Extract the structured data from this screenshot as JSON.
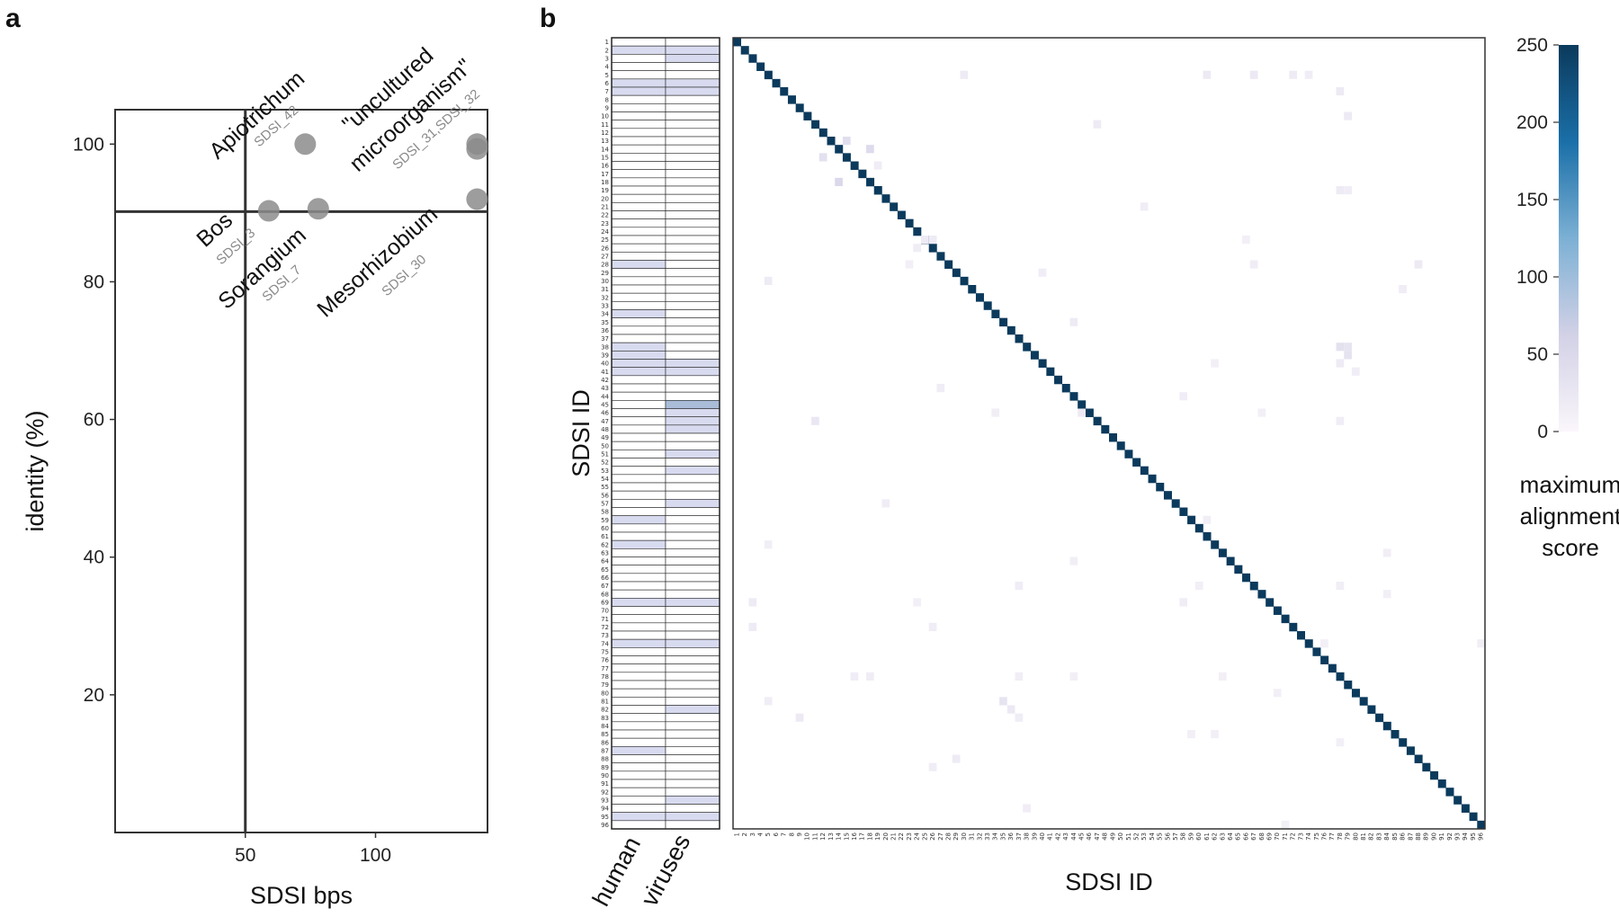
{
  "panel_a": {
    "letter": "a",
    "xlabel": "SDSI bps",
    "ylabel": "identity (%)",
    "xticks": [
      50,
      100
    ],
    "yticks": [
      20,
      40,
      60,
      80,
      100
    ],
    "annotations": [
      {
        "name": "Apiotrichum",
        "id": "SDSI_42"
      },
      {
        "name": "\"uncultured microorganism\"",
        "name_lines": [
          "\"uncultured",
          "microorganism\""
        ],
        "id": "SDSI_31,SDSI_32"
      },
      {
        "name": "Bos",
        "id": "SDSI_3"
      },
      {
        "name": "Sorangium",
        "id": "SDSI_7"
      },
      {
        "name": "Mesorhizobium",
        "id": "SDSI_30"
      }
    ]
  },
  "panel_b": {
    "letter": "b",
    "ylabel": "SDSI ID",
    "xlabel": "SDSI ID",
    "side_columns": [
      "human",
      "viruses"
    ],
    "colorbar": {
      "label_lines": [
        "maximum",
        "alignment",
        "score"
      ],
      "ticks": [
        0,
        50,
        100,
        150,
        200,
        250
      ]
    }
  },
  "colors": {
    "point": "#8c8c8c",
    "point_dark": "#555555",
    "diag": "#0b3a5c",
    "low_cell": "#e6e4f0",
    "cmap_low": "#faf6fb",
    "cmap_high": "#0b3a5c"
  },
  "chart_data": [
    {
      "type": "scatter",
      "title": "",
      "xlabel": "SDSI bps",
      "ylabel": "identity (%)",
      "xlim": [
        0,
        143
      ],
      "ylim": [
        0,
        105
      ],
      "reference_lines": {
        "x": 50,
        "y": 90.2
      },
      "points": [
        {
          "x": 73,
          "y": 100,
          "label": "SDSI_42"
        },
        {
          "x": 59,
          "y": 90.3,
          "label": "SDSI_3"
        },
        {
          "x": 78,
          "y": 90.6,
          "label": "SDSI_7"
        },
        {
          "x": 139,
          "y": 100,
          "label": "SDSI_31"
        },
        {
          "x": 139,
          "y": 99.3,
          "label": "SDSI_32"
        },
        {
          "x": 139,
          "y": 92,
          "label": "SDSI_30"
        }
      ]
    },
    {
      "type": "heatmap",
      "title": "",
      "xlabel": "SDSI ID",
      "ylabel": "SDSI ID",
      "n": 96,
      "diagonal_value": 250,
      "colorbar_range": [
        0,
        250
      ],
      "offdiag_cells": [
        [
          5,
          30,
          18
        ],
        [
          5,
          61,
          20
        ],
        [
          5,
          74,
          16
        ],
        [
          5,
          67,
          22
        ],
        [
          5,
          72,
          18
        ],
        [
          7,
          78,
          20
        ],
        [
          11,
          47,
          18
        ],
        [
          10,
          79,
          20
        ],
        [
          13,
          15,
          40
        ],
        [
          15,
          12,
          36
        ],
        [
          14,
          18,
          45
        ],
        [
          18,
          14,
          50
        ],
        [
          16,
          19,
          15
        ],
        [
          19,
          78,
          18
        ],
        [
          19,
          79,
          15
        ],
        [
          21,
          53,
          15
        ],
        [
          25,
          25,
          20
        ],
        [
          25,
          26,
          18
        ],
        [
          26,
          24,
          15
        ],
        [
          25,
          66,
          12
        ],
        [
          28,
          23,
          12
        ],
        [
          28,
          67,
          15
        ],
        [
          28,
          88,
          20
        ],
        [
          29,
          40,
          15
        ],
        [
          30,
          5,
          18
        ],
        [
          31,
          86,
          15
        ],
        [
          35,
          44,
          18
        ],
        [
          38,
          78,
          35
        ],
        [
          38,
          79,
          30
        ],
        [
          39,
          79,
          32
        ],
        [
          40,
          62,
          12
        ],
        [
          40,
          78,
          18
        ],
        [
          41,
          80,
          15
        ],
        [
          43,
          27,
          15
        ],
        [
          44,
          58,
          15
        ],
        [
          46,
          45,
          20
        ],
        [
          46,
          68,
          12
        ],
        [
          46,
          34,
          14
        ],
        [
          47,
          78,
          15
        ],
        [
          47,
          11,
          25
        ],
        [
          57,
          20,
          15
        ],
        [
          59,
          61,
          14
        ],
        [
          62,
          5,
          14
        ],
        [
          63,
          84,
          14
        ],
        [
          64,
          44,
          14
        ],
        [
          67,
          37,
          15
        ],
        [
          67,
          60,
          12
        ],
        [
          67,
          78,
          14
        ],
        [
          68,
          84,
          12
        ],
        [
          69,
          3,
          18
        ],
        [
          69,
          24,
          12
        ],
        [
          69,
          58,
          15
        ],
        [
          72,
          3,
          18
        ],
        [
          72,
          26,
          15
        ],
        [
          74,
          76,
          12
        ],
        [
          74,
          96,
          14
        ],
        [
          78,
          16,
          15
        ],
        [
          78,
          18,
          15
        ],
        [
          78,
          44,
          12
        ],
        [
          78,
          37,
          14
        ],
        [
          78,
          63,
          12
        ],
        [
          80,
          70,
          12
        ],
        [
          81,
          5,
          15
        ],
        [
          81,
          35,
          30
        ],
        [
          82,
          36,
          22
        ],
        [
          83,
          9,
          20
        ],
        [
          83,
          37,
          15
        ],
        [
          85,
          59,
          12
        ],
        [
          85,
          62,
          12
        ],
        [
          86,
          78,
          12
        ],
        [
          89,
          26,
          15
        ],
        [
          88,
          29,
          18
        ],
        [
          94,
          38,
          15
        ],
        [
          96,
          71,
          12
        ]
      ],
      "side_columns": [
        {
          "name": "human",
          "highlighted_rows": [
            2,
            6,
            7,
            28,
            34,
            38,
            39,
            40,
            41,
            59,
            62,
            69,
            74,
            87,
            95
          ]
        },
        {
          "name": "viruses",
          "highlighted_rows": [
            2,
            3,
            6,
            7,
            40,
            41,
            45,
            46,
            47,
            48,
            51,
            53,
            57,
            69,
            74,
            82,
            93,
            95
          ]
        }
      ]
    }
  ]
}
